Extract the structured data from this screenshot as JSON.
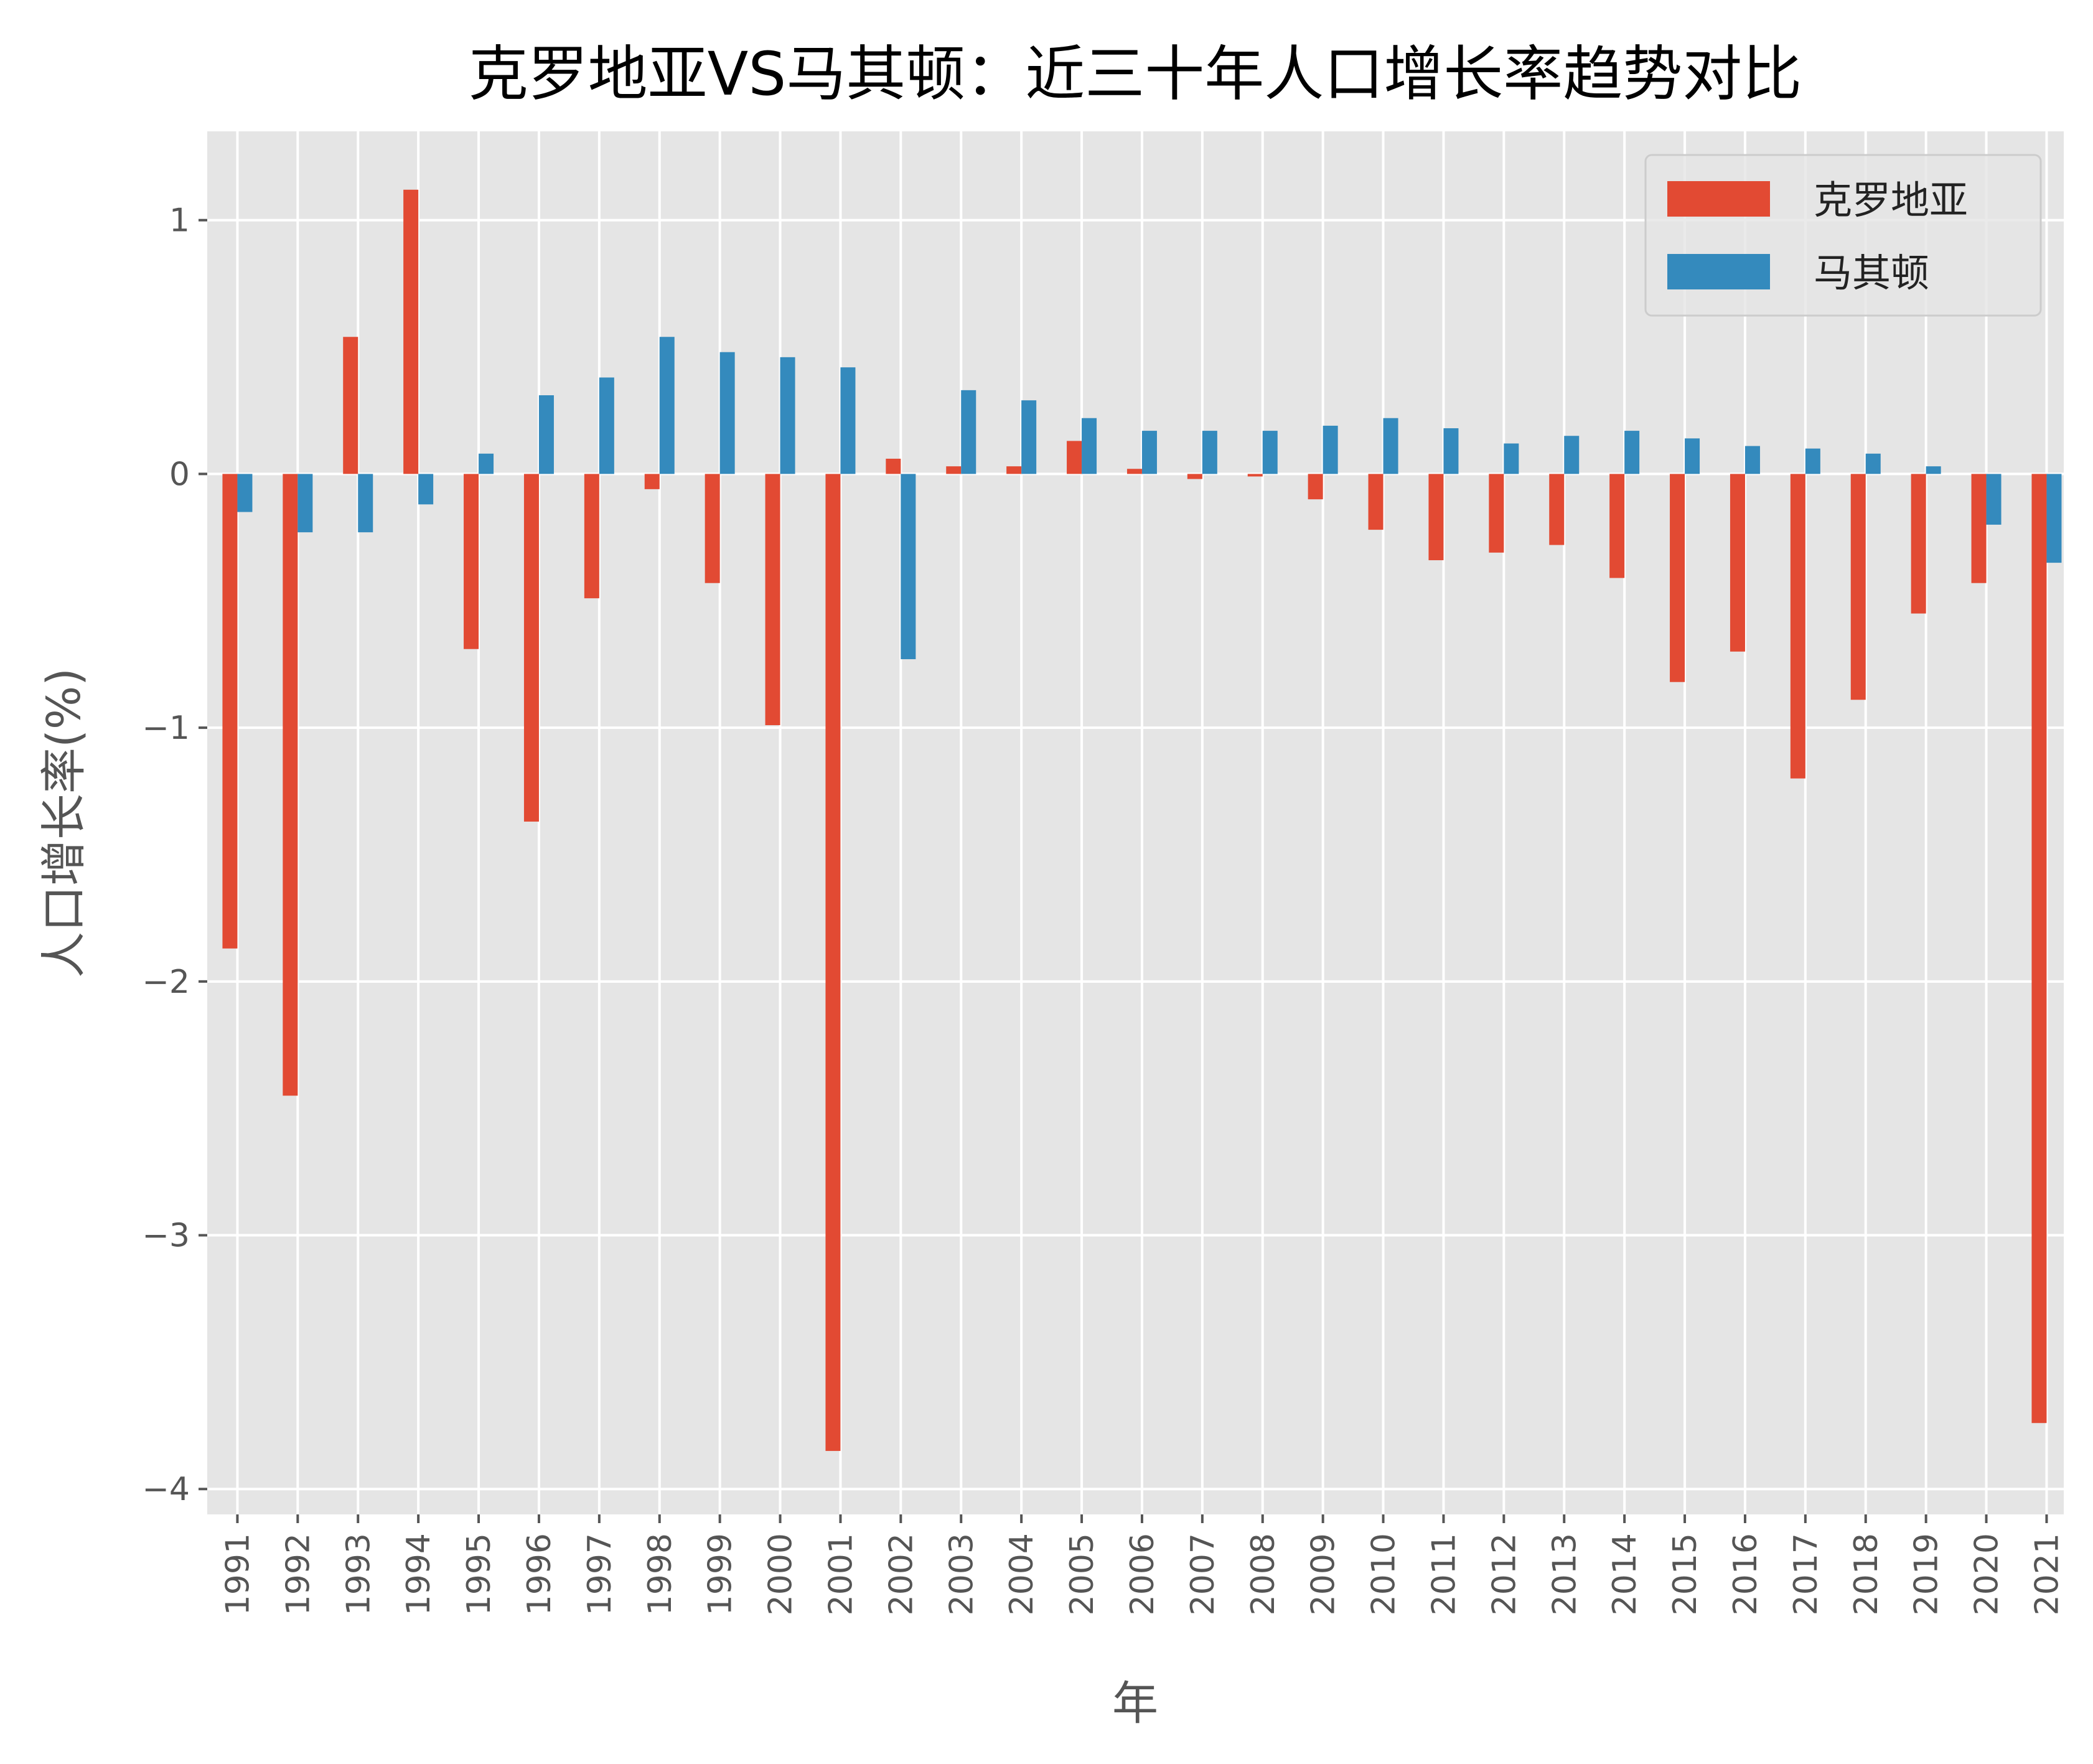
{
  "chart_data": {
    "type": "bar",
    "title": "克罗地亚VS马其顿：近三十年人口增长率趋势对比",
    "xlabel": "年",
    "ylabel": "人口增长率(%)",
    "ylim": [
      -4.1,
      1.35
    ],
    "yticks": [
      1,
      0,
      -1,
      -2,
      -3,
      -4
    ],
    "ytick_labels": [
      "1",
      "0",
      "−1",
      "−2",
      "−3",
      "−4"
    ],
    "grid": true,
    "legend_position": "top-right",
    "categories": [
      "1991",
      "1992",
      "1993",
      "1994",
      "1995",
      "1996",
      "1997",
      "1998",
      "1999",
      "2000",
      "2001",
      "2002",
      "2003",
      "2004",
      "2005",
      "2006",
      "2007",
      "2008",
      "2009",
      "2010",
      "2011",
      "2012",
      "2013",
      "2014",
      "2015",
      "2016",
      "2017",
      "2018",
      "2019",
      "2020",
      "2021"
    ],
    "series": [
      {
        "name": "克罗地亚",
        "color": "#E24A33",
        "values": [
          -1.87,
          -2.45,
          0.54,
          1.12,
          -0.69,
          -1.37,
          -0.49,
          -0.06,
          -0.43,
          -0.99,
          -3.85,
          0.06,
          0.03,
          0.03,
          0.13,
          0.02,
          -0.02,
          -0.01,
          -0.1,
          -0.22,
          -0.34,
          -0.31,
          -0.28,
          -0.41,
          -0.82,
          -0.7,
          -1.2,
          -0.89,
          -0.55,
          -0.43,
          -3.74
        ]
      },
      {
        "name": "马其顿",
        "color": "#348ABD",
        "values": [
          -0.15,
          -0.23,
          -0.23,
          -0.12,
          0.08,
          0.31,
          0.38,
          0.54,
          0.48,
          0.46,
          0.42,
          -0.73,
          0.33,
          0.29,
          0.22,
          0.17,
          0.17,
          0.17,
          0.19,
          0.22,
          0.18,
          0.12,
          0.15,
          0.17,
          0.14,
          0.11,
          0.1,
          0.08,
          0.03,
          -0.2,
          -0.35
        ]
      }
    ]
  },
  "colors": {
    "plot_background": "#E5E5E5",
    "grid": "#FFFFFF",
    "tick_text": "#555555",
    "title_text": "#000000"
  }
}
